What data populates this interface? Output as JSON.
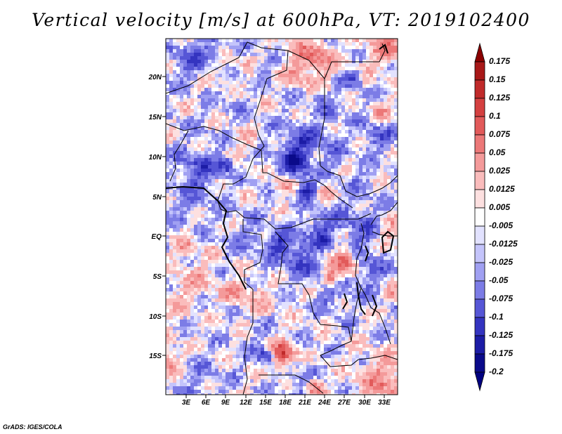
{
  "title": "Vertical velocity [m/s] at 600hPa, VT: 2019102400",
  "footer": "GrADS: IGES/COLA",
  "lat_labels": [
    "20N",
    "15N",
    "10N",
    "5N",
    "EQ",
    "5S",
    "10S",
    "15S"
  ],
  "lon_labels": [
    "3E",
    "6E",
    "9E",
    "12E",
    "15E",
    "18E",
    "21E",
    "24E",
    "27E",
    "30E",
    "33E"
  ],
  "colorbar": {
    "labels": [
      "0.175",
      "0.15",
      "0.125",
      "0.1",
      "0.075",
      "0.05",
      "0.025",
      "0.0125",
      "0.005",
      "-0.005",
      "-0.0125",
      "-0.025",
      "-0.05",
      "-0.075",
      "-0.1",
      "-0.125",
      "-0.175",
      "-0.2"
    ],
    "colors": [
      "#8b0000",
      "#a81818",
      "#c02a2a",
      "#d44040",
      "#e25a5a",
      "#ec7878",
      "#f49a9a",
      "#fabcbc",
      "#fde0e0",
      "#ffffff",
      "#e2e2ff",
      "#c4c4fb",
      "#a0a0f2",
      "#7c7ce6",
      "#5656d6",
      "#3434c0",
      "#1c1ca6",
      "#0a0a8a",
      "#000080"
    ]
  },
  "chart_data": {
    "type": "heatmap",
    "variable": "Vertical velocity",
    "units": "m/s",
    "level": "600hPa",
    "valid_time": "2019102400",
    "lon_range": [
      0,
      35
    ],
    "lat_range": [
      -20,
      25
    ],
    "levels": [
      -0.2,
      -0.175,
      -0.125,
      -0.1,
      -0.075,
      -0.05,
      -0.025,
      -0.0125,
      -0.005,
      0.005,
      0.0125,
      0.025,
      0.05,
      0.075,
      0.1,
      0.125,
      0.15,
      0.175
    ]
  }
}
